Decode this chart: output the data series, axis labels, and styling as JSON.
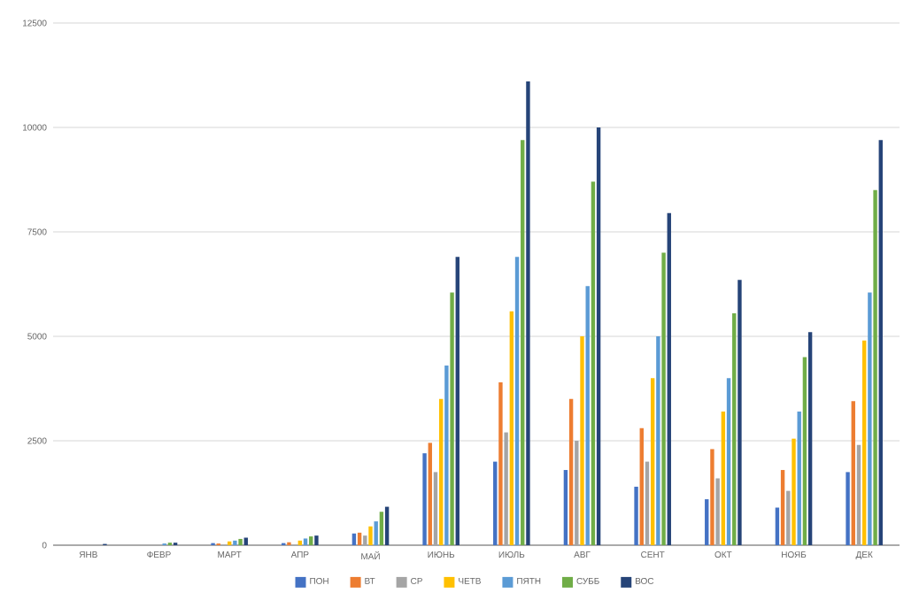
{
  "chart_data": {
    "type": "bar",
    "categories": [
      "ЯНВ",
      "ФЕВР",
      "МАРТ",
      "АПР",
      "МАЙ",
      "ИЮНЬ",
      "ИЮЛЬ",
      "АВГ",
      "СЕНТ",
      "ОКТ",
      "НОЯБ",
      "ДЕК"
    ],
    "series": [
      {
        "name": "ПОН",
        "color": "#4472c4",
        "values": [
          0,
          0,
          50,
          50,
          280,
          2200,
          2000,
          1800,
          1400,
          1100,
          900,
          1750
        ]
      },
      {
        "name": "ВТ",
        "color": "#ed7d31",
        "values": [
          0,
          0,
          40,
          70,
          300,
          2450,
          3900,
          3500,
          2800,
          2300,
          1800,
          3450
        ]
      },
      {
        "name": "СР",
        "color": "#a5a5a5",
        "values": [
          0,
          0,
          null,
          null,
          230,
          1750,
          2700,
          2500,
          2000,
          1600,
          1300,
          2400
        ]
      },
      {
        "name": "ЧЕТВ",
        "color": "#ffc000",
        "values": [
          0,
          null,
          90,
          110,
          450,
          3500,
          5600,
          5000,
          4000,
          3200,
          2550,
          4900
        ]
      },
      {
        "name": "ПЯТН",
        "color": "#5b9bd5",
        "values": [
          null,
          40,
          110,
          160,
          570,
          4300,
          6900,
          6200,
          5000,
          4000,
          3200,
          6050
        ]
      },
      {
        "name": "СУББ",
        "color": "#70ad47",
        "values": [
          null,
          60,
          150,
          210,
          800,
          6050,
          9700,
          8700,
          7000,
          5550,
          4500,
          8500
        ]
      },
      {
        "name": "ВОС",
        "color": "#264478",
        "values": [
          30,
          60,
          180,
          230,
          920,
          6900,
          11100,
          10000,
          7950,
          6350,
          5100,
          9700
        ]
      }
    ],
    "ylim": [
      0,
      12500
    ],
    "yticks": [
      0,
      2500,
      5000,
      7500,
      10000,
      12500
    ],
    "grid": "y",
    "legend": "bottom"
  }
}
